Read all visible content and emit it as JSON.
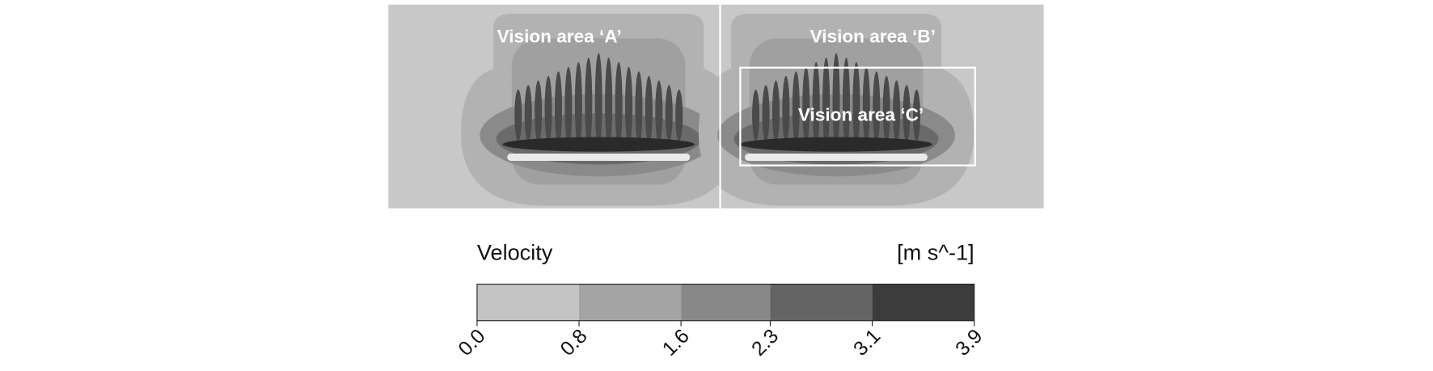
{
  "figure": {
    "panel_labels": [
      "Vision area ‘A’",
      "Vision area ‘B’",
      "Vision area ‘C’"
    ],
    "colorbar": {
      "title": "Velocity",
      "unit": "[m s^-1]",
      "ticks": [
        {
          "value": 0,
          "label": "0.0"
        },
        0.8,
        1.6,
        2.3,
        3.1,
        3.9
      ],
      "colors": [
        "#c4c4c4",
        "#a4a4a4",
        "#888888",
        "#646464",
        "#3c3c3c"
      ]
    }
  }
}
